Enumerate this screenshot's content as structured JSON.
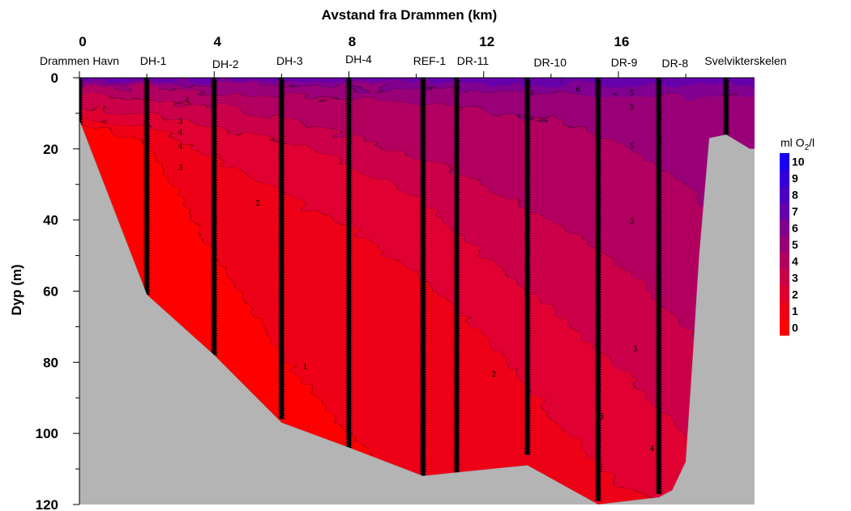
{
  "chart_data": {
    "type": "heatmap",
    "title": "",
    "top_axis": {
      "label": "Avstand fra Drammen (km)",
      "range": [
        0,
        20
      ],
      "ticks": [
        0,
        4,
        8,
        12,
        16
      ]
    },
    "y_axis": {
      "label": "Dyp (m)",
      "range": [
        0,
        120
      ],
      "inverted": true,
      "ticks": [
        0,
        20,
        40,
        60,
        80,
        100,
        120
      ]
    },
    "colorbar": {
      "title_main": "ml O",
      "title_sub": "2",
      "title_rest": "/l",
      "levels": [
        0,
        1,
        2,
        3,
        4,
        5,
        6,
        7,
        8,
        9,
        10
      ],
      "colors": [
        "#ff0000",
        "#ee0018",
        "#e00030",
        "#cc0048",
        "#b30060",
        "#990078",
        "#80008f",
        "#6600aa",
        "#4c00c4",
        "#3300dd",
        "#1a00f4"
      ]
    },
    "stations": [
      {
        "name": "Drammen Havn",
        "km": 0.0,
        "max_depth": 13
      },
      {
        "name": "DH-1",
        "km": 2.0,
        "max_depth": 61
      },
      {
        "name": "DH-2",
        "km": 4.0,
        "max_depth": 78
      },
      {
        "name": "DH-3",
        "km": 6.0,
        "max_depth": 96
      },
      {
        "name": "DH-4",
        "km": 8.0,
        "max_depth": 105
      },
      {
        "name": "REF-1",
        "km": 10.2,
        "max_depth": 112
      },
      {
        "name": "DR-11",
        "km": 11.2,
        "max_depth": 111
      },
      {
        "name": "DR-10",
        "km": 13.3,
        "max_depth": 106
      },
      {
        "name": "DR-9",
        "km": 15.4,
        "max_depth": 119
      },
      {
        "name": "DR-8",
        "km": 17.2,
        "max_depth": 117
      },
      {
        "name": "Svelvikterskelen",
        "km": 19.2,
        "max_depth": 17
      }
    ],
    "bottom_profile": [
      [
        0.0,
        12
      ],
      [
        2.0,
        61
      ],
      [
        4.0,
        78
      ],
      [
        6.0,
        97
      ],
      [
        8.0,
        104
      ],
      [
        10.2,
        112
      ],
      [
        11.2,
        111
      ],
      [
        13.3,
        109
      ],
      [
        15.4,
        120
      ],
      [
        17.2,
        118
      ],
      [
        17.6,
        116
      ],
      [
        18.0,
        108
      ],
      [
        18.2,
        80
      ],
      [
        18.4,
        50
      ],
      [
        18.7,
        17
      ],
      [
        19.2,
        16
      ],
      [
        19.9,
        20
      ]
    ],
    "contour_labels": [
      "1",
      "2",
      "2",
      "3",
      "3",
      "3",
      "3",
      "3",
      "4",
      "4",
      "4",
      "4",
      "5",
      "5",
      "5",
      "6",
      "7"
    ]
  }
}
